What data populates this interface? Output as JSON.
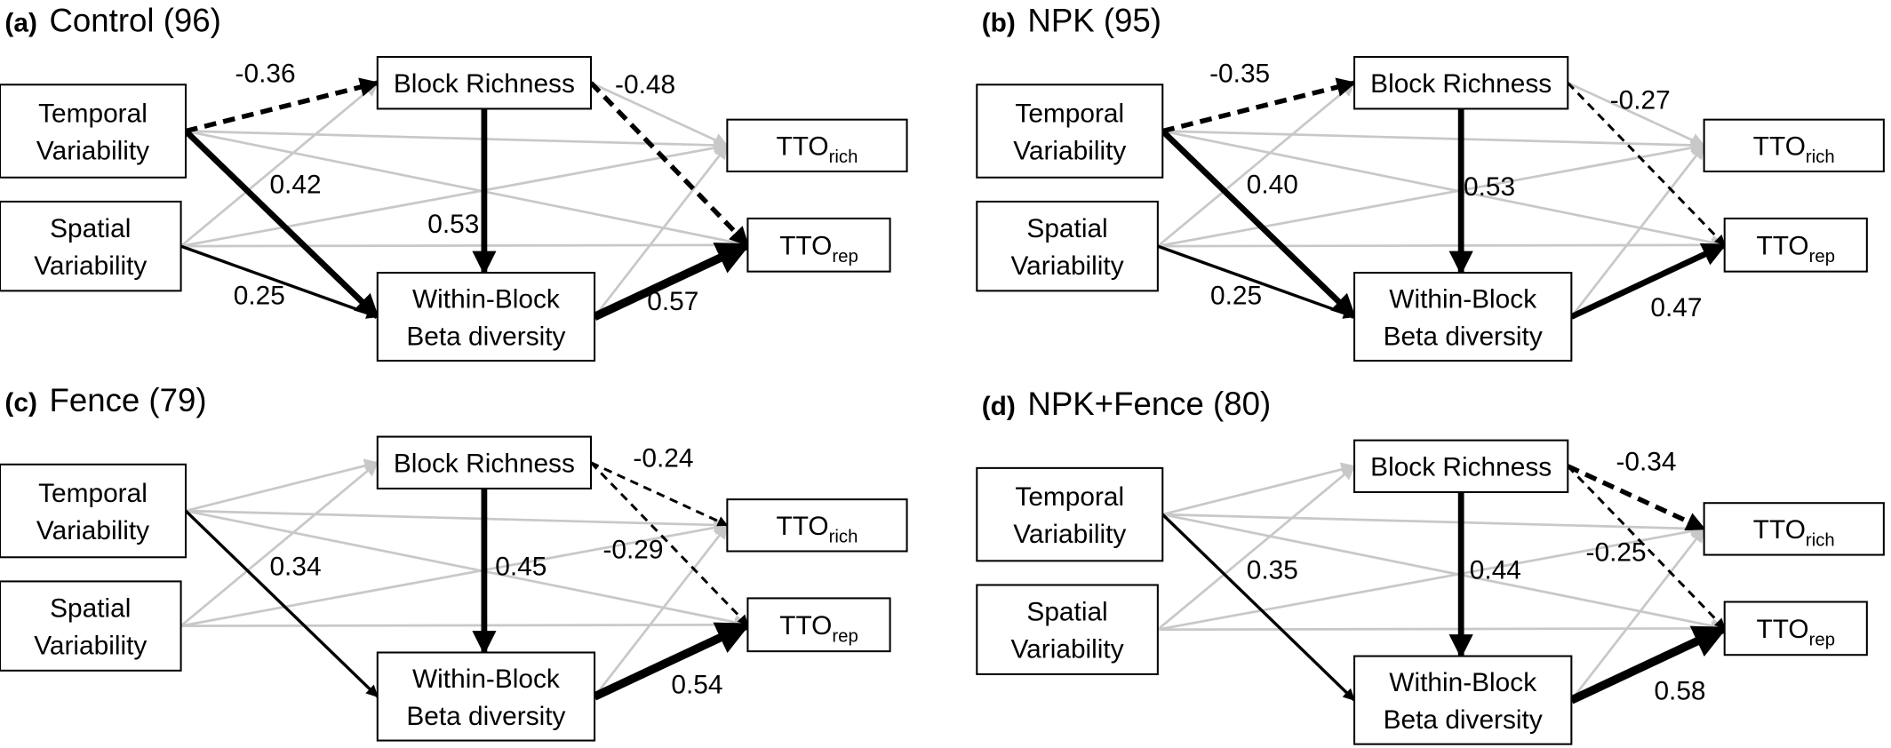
{
  "panels": [
    {
      "label": "(a)",
      "title": "Control (96)",
      "nodes": [
        {
          "lines": [
            "Temporal",
            "Variability"
          ]
        },
        {
          "lines": [
            "Spatial",
            "Variability"
          ]
        },
        {
          "lines": [
            "Block Richness"
          ]
        },
        {
          "lines": [
            "Within-Block",
            "Beta diversity"
          ]
        },
        {
          "text": "TTO",
          "sub": "rich"
        },
        {
          "text": "TTO",
          "sub": "rep"
        }
      ],
      "paths": [
        "-0.36",
        "0.42",
        "0.25",
        "0.53",
        "-0.48",
        "0.57"
      ]
    },
    {
      "label": "(b)",
      "title": "NPK (95)",
      "nodes": [
        {
          "lines": [
            "Temporal",
            "Variability"
          ]
        },
        {
          "lines": [
            "Spatial",
            "Variability"
          ]
        },
        {
          "lines": [
            "Block Richness"
          ]
        },
        {
          "lines": [
            "Within-Block",
            "Beta diversity"
          ]
        },
        {
          "text": "TTO",
          "sub": "rich"
        },
        {
          "text": "TTO",
          "sub": "rep"
        }
      ],
      "paths": [
        "-0.35",
        "0.40",
        "0.25",
        "0.53",
        "-0.27",
        "0.47"
      ]
    },
    {
      "label": "(c)",
      "title": "Fence (79)",
      "nodes": [
        {
          "lines": [
            "Temporal",
            "Variability"
          ]
        },
        {
          "lines": [
            "Spatial",
            "Variability"
          ]
        },
        {
          "lines": [
            "Block Richness"
          ]
        },
        {
          "lines": [
            "Within-Block",
            "Beta diversity"
          ]
        },
        {
          "text": "TTO",
          "sub": "rich"
        },
        {
          "text": "TTO",
          "sub": "rep"
        }
      ],
      "paths": [
        "0.34",
        "0.45",
        "-0.24",
        "-0.29",
        "0.54"
      ]
    },
    {
      "label": "(d)",
      "title": "NPK+Fence (80)",
      "nodes": [
        {
          "lines": [
            "Temporal",
            "Variability"
          ]
        },
        {
          "lines": [
            "Spatial",
            "Variability"
          ]
        },
        {
          "lines": [
            "Block Richness"
          ]
        },
        {
          "lines": [
            "Within-Block",
            "Beta diversity"
          ]
        },
        {
          "text": "TTO",
          "sub": "rich"
        },
        {
          "text": "TTO",
          "sub": "rep"
        }
      ],
      "paths": [
        "0.35",
        "0.44",
        "-0.34",
        "-0.25",
        "0.58"
      ]
    }
  ]
}
